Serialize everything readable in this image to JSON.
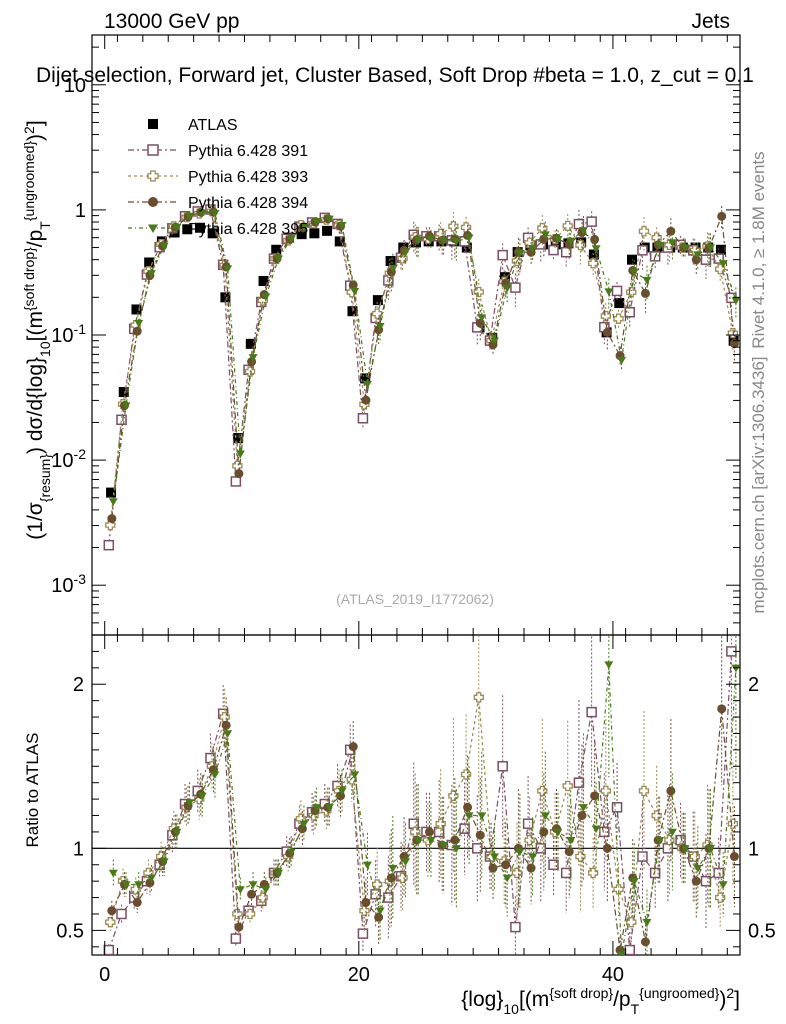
{
  "header": {
    "left": "13000 GeV pp",
    "right": "Jets",
    "plot_title": "Dijet selection, Forward jet, Cluster Based, Soft Drop #beta = 1.0, z_cut = 0.1"
  },
  "side": {
    "rivet": "Rivet 4.1.0, ≥ 1.8M events",
    "mcplots": "mcplots.cern.ch [arXiv:1306.3436]"
  },
  "analysis_ref": "(ATLAS_2019_I1772062)",
  "chart_data": {
    "type": "scatter",
    "x_axis": {
      "label_main": "{log}",
      "label_sub": "10",
      "label_rest": "[(m",
      "label_sup1": "{soft drop}",
      "label_mid": "/p",
      "label_sub2": "T",
      "label_sup2": "{ungroomed}",
      "label_end": ")",
      "label_pow": "2",
      "label_close": "]",
      "range": [
        -1,
        50
      ],
      "ticks": [
        0,
        20,
        40
      ],
      "tick_labels": [
        "0",
        "20",
        "40"
      ]
    },
    "main_y": {
      "label": "(1/σ_{resum}) dσ/d{log}_10[(m^{soft drop}/p_T^{ungroomed})^2]",
      "scale": "log",
      "range": [
        0.0004,
        25
      ],
      "ticks": [
        0.001,
        0.01,
        0.1,
        1,
        10
      ],
      "tick_labels": [
        "10^-3",
        "10^-2",
        "10^-1",
        "1",
        "10"
      ]
    },
    "ratio_y": {
      "label": "Ratio to ATLAS",
      "range": [
        0.35,
        2.3
      ],
      "ticks": [
        0.5,
        1,
        2
      ],
      "tick_labels": [
        "0.5",
        "1",
        "2"
      ]
    },
    "x": [
      0.5,
      1.5,
      2.5,
      3.5,
      4.5,
      5.5,
      6.5,
      7.5,
      8.5,
      9.5,
      10.5,
      11.5,
      12.5,
      13.5,
      14.5,
      15.5,
      16.5,
      17.5,
      18.5,
      19.5,
      20.5,
      21.5,
      22.5,
      23.5,
      24.5,
      25.5,
      26.5,
      27.5,
      28.5,
      29.5,
      30.5,
      31.5,
      32.5,
      33.5,
      34.5,
      35.5,
      36.5,
      37.5,
      38.5,
      39.5,
      40.5,
      41.5,
      42.5,
      43.5,
      44.5,
      45.5,
      46.5,
      47.5,
      48.5,
      49.5
    ],
    "series": [
      {
        "name": "ATLAS",
        "color": "#000000",
        "marker": "square-filled",
        "values": [
          0.0055,
          0.035,
          0.16,
          0.38,
          0.56,
          0.66,
          0.7,
          0.72,
          0.65,
          0.2,
          0.015,
          0.085,
          0.27,
          0.48,
          0.6,
          0.64,
          0.65,
          0.68,
          0.56,
          0.155,
          0.045,
          0.19,
          0.39,
          0.5,
          0.55,
          0.56,
          0.56,
          0.56,
          0.5,
          0.115,
          0.095,
          0.29,
          0.46,
          0.52,
          0.53,
          0.53,
          0.54,
          0.55,
          0.44,
          0.105,
          0.18,
          0.4,
          0.5,
          0.5,
          0.5,
          0.5,
          0.5,
          0.5,
          0.48,
          0.09
        ],
        "ratio": [
          1,
          1,
          1,
          1,
          1,
          1,
          1,
          1,
          1,
          1,
          1,
          1,
          1,
          1,
          1,
          1,
          1,
          1,
          1,
          1,
          1,
          1,
          1,
          1,
          1,
          1,
          1,
          1,
          1,
          1,
          1,
          1,
          1,
          1,
          1,
          1,
          1,
          1,
          1,
          1,
          1,
          1,
          1,
          1,
          1,
          1,
          1,
          1,
          1,
          1
        ]
      },
      {
        "name": "Pythia 6.428 391",
        "color": "#7a4e66",
        "marker": "square-open",
        "ratio": [
          0.38,
          0.6,
          0.7,
          0.8,
          0.9,
          1.08,
          1.27,
          1.35,
          1.55,
          1.82,
          0.45,
          0.62,
          0.68,
          0.85,
          0.98,
          1.15,
          1.22,
          1.27,
          1.38,
          1.6,
          0.48,
          0.72,
          0.7,
          0.83,
          1.15,
          1.1,
          1.1,
          1.02,
          1.12,
          1.0,
          0.95,
          1.5,
          0.52,
          1.15,
          1.0,
          0.9,
          0.85,
          1.4,
          1.83,
          1.1,
          1.25,
          0.38,
          0.95,
          0.85,
          1.0,
          1.05,
          0.95,
          0.8,
          0.85,
          2.2
        ]
      },
      {
        "name": "Pythia 6.428 393",
        "color": "#9b8a52",
        "marker": "cross-open",
        "ratio": [
          0.55,
          0.8,
          0.75,
          0.85,
          0.95,
          1.12,
          1.25,
          1.3,
          1.5,
          1.8,
          0.6,
          0.6,
          0.7,
          0.85,
          0.95,
          1.18,
          1.2,
          1.23,
          1.35,
          1.42,
          0.62,
          0.78,
          0.8,
          0.82,
          1.1,
          1.05,
          1.15,
          1.32,
          1.45,
          1.92,
          0.95,
          0.92,
          0.85,
          1.05,
          1.35,
          1.1,
          1.38,
          0.95,
          0.85,
          1.35,
          0.75,
          0.55,
          1.35,
          1.2,
          1.05,
          1.0,
          0.95,
          1.02,
          0.7,
          1.15
        ]
      },
      {
        "name": "Pythia 6.428 394",
        "color": "#6b4c2f",
        "marker": "circle-filled",
        "ratio": [
          0.62,
          0.78,
          0.67,
          0.79,
          0.92,
          1.1,
          1.26,
          1.33,
          1.48,
          1.75,
          0.52,
          0.72,
          0.78,
          0.85,
          0.97,
          1.12,
          1.23,
          1.25,
          1.32,
          1.62,
          0.67,
          0.58,
          0.82,
          0.95,
          1.05,
          1.1,
          1.02,
          1.05,
          1.25,
          1.08,
          0.88,
          0.9,
          1.0,
          0.88,
          1.1,
          1.12,
          0.98,
          1.2,
          1.32,
          1.0,
          0.38,
          0.82,
          0.43,
          1.05,
          1.35,
          1.0,
          0.8,
          1.0,
          1.85,
          0.95
        ]
      },
      {
        "name": "Pythia 6.428 395",
        "color": "#4a7a18",
        "marker": "triangle-down-filled",
        "ratio": [
          0.85,
          0.78,
          0.78,
          0.82,
          0.92,
          1.1,
          1.28,
          1.32,
          1.45,
          1.7,
          0.75,
          0.78,
          0.75,
          0.85,
          0.98,
          1.15,
          1.25,
          1.25,
          1.35,
          1.45,
          0.9,
          0.62,
          0.88,
          0.92,
          1.05,
          1.05,
          1.02,
          1.0,
          1.2,
          1.2,
          0.95,
          0.82,
          0.98,
          0.95,
          1.2,
          1.1,
          1.05,
          1.25,
          1.12,
          2.12,
          0.35,
          0.8,
          0.55,
          1.05,
          1.1,
          1.0,
          0.88,
          1.0,
          0.78,
          2.1
        ]
      }
    ],
    "legend": [
      {
        "label": "ATLAS"
      },
      {
        "label": "Pythia 6.428 391"
      },
      {
        "label": "Pythia 6.428 393"
      },
      {
        "label": "Pythia 6.428 394"
      },
      {
        "label": "Pythia 6.428 395"
      }
    ]
  }
}
